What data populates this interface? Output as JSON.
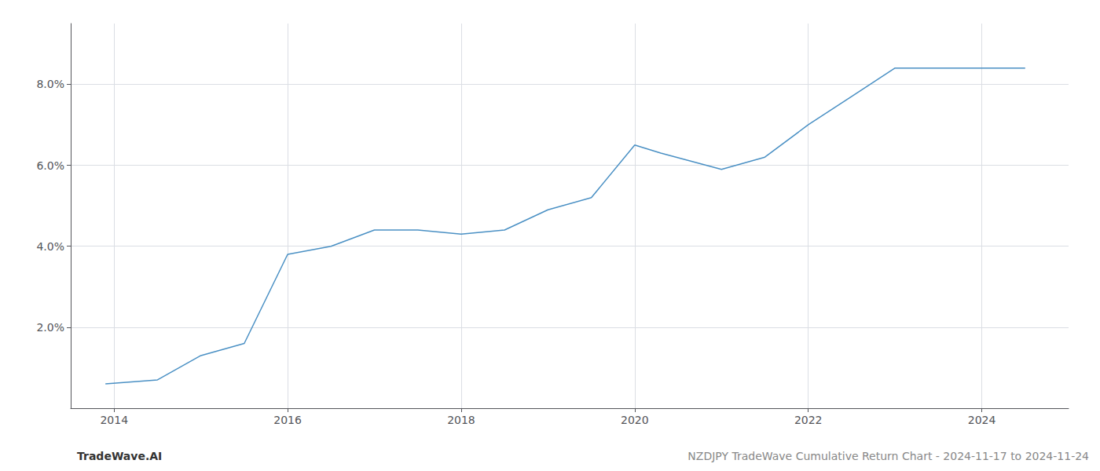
{
  "chart_data": {
    "type": "line",
    "x": [
      2013.9,
      2014.5,
      2015.0,
      2015.5,
      2016.0,
      2016.5,
      2017.0,
      2017.5,
      2018.0,
      2018.5,
      2019.0,
      2019.5,
      2020.0,
      2020.3,
      2021.0,
      2021.5,
      2022.0,
      2022.5,
      2023.0,
      2023.5,
      2024.0,
      2024.5
    ],
    "values": [
      0.006,
      0.007,
      0.013,
      0.016,
      0.038,
      0.04,
      0.044,
      0.044,
      0.043,
      0.044,
      0.049,
      0.052,
      0.065,
      0.063,
      0.059,
      0.062,
      0.07,
      0.077,
      0.084,
      0.084,
      0.084,
      0.084
    ],
    "color": "#4a90c4",
    "xlim": [
      2013.5,
      2025.0
    ],
    "xticks": [
      2014,
      2016,
      2018,
      2020,
      2022,
      2024
    ],
    "ylim": [
      0.0,
      0.095
    ],
    "yticks": [
      {
        "value": 0.02,
        "label": "2.0%"
      },
      {
        "value": 0.04,
        "label": "4.0%"
      },
      {
        "value": 0.06,
        "label": "6.0%"
      },
      {
        "value": 0.08,
        "label": "8.0%"
      }
    ],
    "grid": true,
    "annotations": [
      "TradeWave.AI",
      "NZDJPY TradeWave Cumulative Return Chart - 2024-11-17 to 2024-11-24"
    ]
  }
}
